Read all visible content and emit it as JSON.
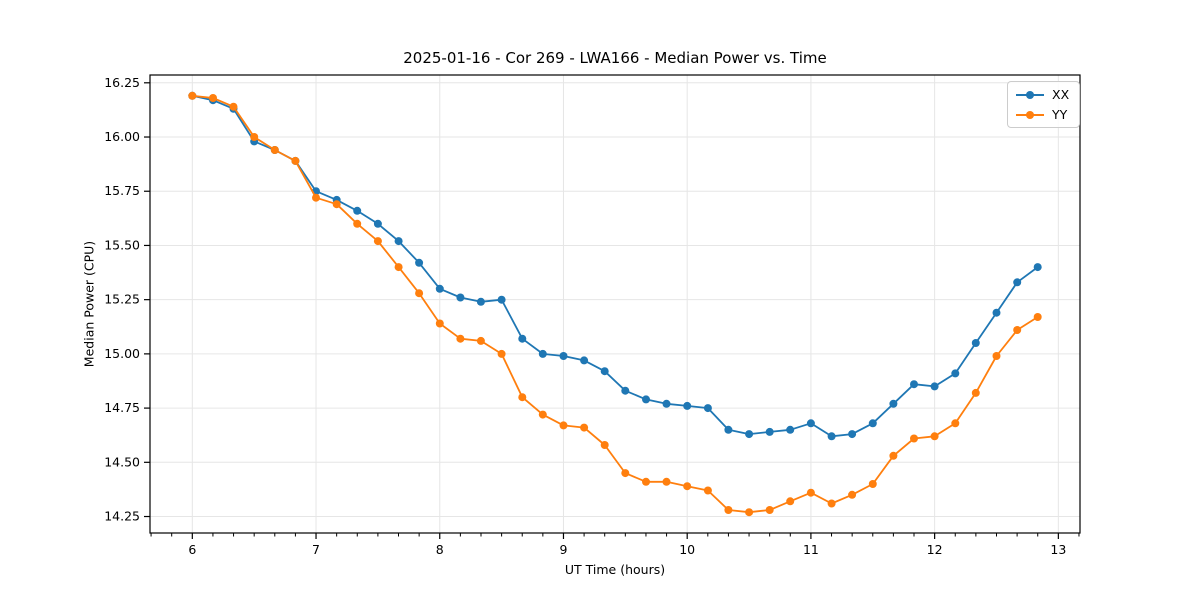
{
  "chart_data": {
    "type": "line",
    "title": "2025-01-16 - Cor 269 - LWA166 - Median Power vs. Time",
    "xlabel": "UT Time (hours)",
    "ylabel": "Median Power (CPU)",
    "xlim": [
      5.658,
      13.175
    ],
    "ylim": [
      14.174,
      16.286
    ],
    "x_ticks": [
      6,
      7,
      8,
      9,
      10,
      11,
      12,
      13
    ],
    "x_minor_per_hour": 6,
    "y_ticks": [
      14.25,
      14.5,
      14.75,
      15.0,
      15.25,
      15.5,
      15.75,
      16.0,
      16.25
    ],
    "grid": true,
    "legend_position": "upper right",
    "x": [
      6.0,
      6.167,
      6.333,
      6.5,
      6.667,
      6.833,
      7.0,
      7.167,
      7.333,
      7.5,
      7.667,
      7.833,
      8.0,
      8.167,
      8.333,
      8.5,
      8.667,
      8.833,
      9.0,
      9.167,
      9.333,
      9.5,
      9.667,
      9.833,
      10.0,
      10.167,
      10.333,
      10.5,
      10.667,
      10.833,
      11.0,
      11.167,
      11.333,
      11.5,
      11.667,
      11.833,
      12.0,
      12.167,
      12.333,
      12.5,
      12.667,
      12.833
    ],
    "series": [
      {
        "name": "XX",
        "color": "#1f77b4",
        "values": [
          16.19,
          16.17,
          16.13,
          15.98,
          15.94,
          15.89,
          15.75,
          15.71,
          15.66,
          15.6,
          15.52,
          15.42,
          15.3,
          15.26,
          15.24,
          15.25,
          15.07,
          15.0,
          14.99,
          14.97,
          14.92,
          14.83,
          14.79,
          14.77,
          14.76,
          14.75,
          14.65,
          14.63,
          14.64,
          14.65,
          14.68,
          14.62,
          14.63,
          14.68,
          14.77,
          14.86,
          14.85,
          14.91,
          15.05,
          15.19,
          15.33,
          15.4
        ]
      },
      {
        "name": "YY",
        "color": "#ff7f0e",
        "values": [
          16.19,
          16.18,
          16.14,
          16.0,
          15.94,
          15.89,
          15.72,
          15.69,
          15.6,
          15.52,
          15.4,
          15.28,
          15.14,
          15.07,
          15.06,
          15.0,
          14.8,
          14.72,
          14.67,
          14.66,
          14.58,
          14.45,
          14.41,
          14.41,
          14.39,
          14.37,
          14.28,
          14.27,
          14.28,
          14.32,
          14.36,
          14.31,
          14.35,
          14.4,
          14.53,
          14.61,
          14.62,
          14.68,
          14.82,
          14.99,
          15.11,
          15.17
        ]
      }
    ]
  },
  "style": {
    "grid_color": "#e6e6e6",
    "spine_color": "#000000",
    "tick_color": "#000000",
    "background": "#ffffff"
  }
}
